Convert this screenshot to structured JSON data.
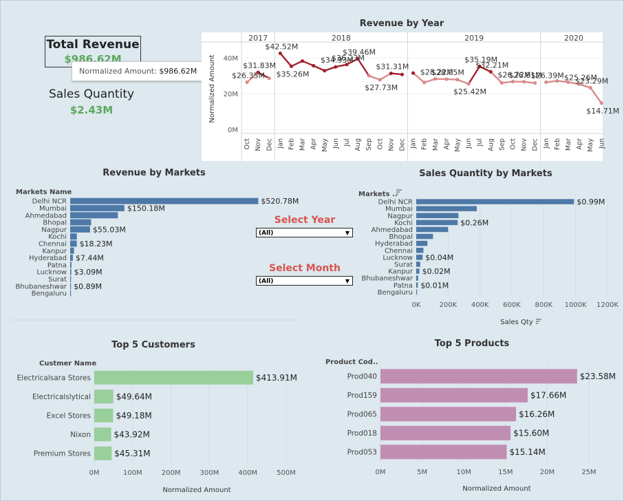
{
  "kpis": {
    "total_revenue_label": "Total Revenue",
    "total_revenue_value": "$986.62M",
    "sales_quantity_label": "Sales Quantity",
    "sales_quantity_value": "$2.43M",
    "tooltip_label": "Normalized Amount:",
    "tooltip_value": "$986.62M"
  },
  "filters": {
    "year_title": "Select Year",
    "year_value": "(All)",
    "month_title": "Select Month",
    "month_value": "(All)"
  },
  "colors": {
    "line_dark": "#a3212d",
    "line_light": "#d88b8b",
    "market_bar": "#4e79a7",
    "customer_bar": "#98cf9b",
    "product_bar": "#c18eb3",
    "kpi_green": "#5ba85b",
    "select_title": "#d9534f"
  },
  "chart_data": [
    {
      "id": "revenue_by_year",
      "type": "line",
      "title": "Revenue by Year",
      "ylabel": "Normalized Amount",
      "ylim": [
        0,
        45
      ],
      "y_ticks": [
        "0M",
        "20M",
        "40M"
      ],
      "y_tick_values": [
        0,
        20,
        40
      ],
      "years": [
        {
          "label": "2017",
          "months": [
            "Oct",
            "Nov",
            "Dec"
          ],
          "values": [
            26.35,
            31.83,
            28.6
          ]
        },
        {
          "label": "2018",
          "months": [
            "Jan",
            "Feb",
            "Mar",
            "Apr",
            "May",
            "Jun",
            "Jul",
            "Aug",
            "Sep",
            "Oct",
            "Nov",
            "Dec"
          ],
          "values": [
            42.52,
            35.26,
            38.2,
            35.6,
            32.8,
            34.93,
            36.23,
            39.46,
            30.0,
            27.73,
            31.31,
            30.7
          ]
        },
        {
          "label": "2019",
          "months": [
            "Jan",
            "Feb",
            "Mar",
            "Apr",
            "May",
            "Jun",
            "Jul",
            "Aug",
            "Sep",
            "Oct",
            "Nov",
            "Dec"
          ],
          "values": [
            31.5,
            26.2,
            28.22,
            28.05,
            27.8,
            25.42,
            35.19,
            32.21,
            26.0,
            26.72,
            26.61,
            25.9
          ]
        },
        {
          "label": "2020",
          "months": [
            "Jan",
            "Feb",
            "Mar",
            "Apr",
            "May",
            "Jun"
          ],
          "values": [
            26.39,
            27.1,
            26.4,
            25.26,
            23.29,
            14.71
          ]
        }
      ],
      "data_labels": [
        {
          "year": 0,
          "month": 0,
          "text": "$26.35M"
        },
        {
          "year": 0,
          "month": 1,
          "text": "$31.83M"
        },
        {
          "year": 1,
          "month": 0,
          "text": "$42.52M"
        },
        {
          "year": 1,
          "month": 1,
          "text": "$35.26M"
        },
        {
          "year": 1,
          "month": 5,
          "text": "$34.93M"
        },
        {
          "year": 1,
          "month": 6,
          "text": "$36.23M"
        },
        {
          "year": 1,
          "month": 7,
          "text": "$39.46M"
        },
        {
          "year": 1,
          "month": 9,
          "text": "$27.73M"
        },
        {
          "year": 1,
          "month": 10,
          "text": "$31.31M"
        },
        {
          "year": 2,
          "month": 2,
          "text": "$28.22M"
        },
        {
          "year": 2,
          "month": 3,
          "text": "$28.05M"
        },
        {
          "year": 2,
          "month": 5,
          "text": "$25.42M"
        },
        {
          "year": 2,
          "month": 6,
          "text": "$35.19M"
        },
        {
          "year": 2,
          "month": 7,
          "text": "$32.21M"
        },
        {
          "year": 2,
          "month": 9,
          "text": "$26.72M"
        },
        {
          "year": 2,
          "month": 10,
          "text": "$26.61M"
        },
        {
          "year": 3,
          "month": 0,
          "text": "$26.39M"
        },
        {
          "year": 3,
          "month": 3,
          "text": "$25.26M"
        },
        {
          "year": 3,
          "month": 4,
          "text": "$23.29M"
        },
        {
          "year": 3,
          "month": 5,
          "text": "$14.71M"
        }
      ]
    },
    {
      "id": "revenue_by_markets",
      "type": "bar",
      "title": "Revenue by Markets",
      "category_header": "Markets Name",
      "categories": [
        "Delhi NCR",
        "Mumbai",
        "Ahmedabad",
        "Bhopal",
        "Nagpur",
        "Kochi",
        "Chennai",
        "Kanpur",
        "Hyderabad",
        "Patna",
        "Lucknow",
        "Surat",
        "Bhubaneshwar",
        "Bengaluru"
      ],
      "values": [
        520.78,
        150.18,
        132.0,
        58.0,
        55.03,
        18.5,
        18.23,
        10.5,
        7.44,
        3.5,
        3.09,
        1.5,
        0.89,
        0.1
      ],
      "labels": [
        "$520.78M",
        "$150.18M",
        "",
        "",
        "$55.03M",
        "",
        "$18.23M",
        "",
        "$7.44M",
        "",
        "$3.09M",
        "",
        "$0.89M",
        ""
      ],
      "xlim": [
        0,
        560
      ]
    },
    {
      "id": "sales_quantity_by_markets",
      "type": "bar",
      "title": "Sales Quantity by Markets",
      "category_header": "Markets ..",
      "categories": [
        "Delhi NCR",
        "Mumbai",
        "Nagpur",
        "Kochi",
        "Ahmedabad",
        "Bhopal",
        "Hyderabad",
        "Chennai",
        "Lucknow",
        "Surat",
        "Kanpur",
        "Bhubaneshwar",
        "Patna",
        "Bengaluru"
      ],
      "values": [
        990000,
        380000,
        265000,
        260000,
        200000,
        105000,
        70000,
        45000,
        40000,
        25000,
        20000,
        12000,
        10000,
        2000
      ],
      "labels": [
        "$0.99M",
        "",
        "",
        "$0.26M",
        "",
        "",
        "",
        "",
        "$0.04M",
        "",
        "$0.02M",
        "",
        "$0.01M",
        ""
      ],
      "xlim": [
        0,
        1200000
      ],
      "x_ticks": [
        "0K",
        "200K",
        "400K",
        "600K",
        "800K",
        "1000K",
        "1200K"
      ],
      "x_tick_values": [
        0,
        200000,
        400000,
        600000,
        800000,
        1000000,
        1200000
      ],
      "xlabel": "Sales Qty"
    },
    {
      "id": "top_5_customers",
      "type": "bar",
      "title": "Top 5 Customers",
      "category_header": "Custmer Name",
      "categories": [
        "Electricalsara Stores",
        "Electricalslytical",
        "Excel Stores",
        "Nixon",
        "Premium Stores"
      ],
      "values": [
        413.91,
        49.64,
        49.18,
        43.92,
        45.31
      ],
      "labels": [
        "$413.91M",
        "$49.64M",
        "$49.18M",
        "$43.92M",
        "$45.31M"
      ],
      "xlim": [
        0,
        500
      ],
      "x_ticks": [
        "0M",
        "100M",
        "200M",
        "300M",
        "400M",
        "500M"
      ],
      "x_tick_values": [
        0,
        100,
        200,
        300,
        400,
        500
      ],
      "xlabel": "Normalized Amount"
    },
    {
      "id": "top_5_products",
      "type": "bar",
      "title": "Top 5 Products",
      "category_header": "Product Cod..",
      "categories": [
        "Prod040",
        "Prod159",
        "Prod065",
        "Prod018",
        "Prod053"
      ],
      "values": [
        23.58,
        17.66,
        16.26,
        15.6,
        15.14
      ],
      "labels": [
        "$23.58M",
        "$17.66M",
        "$16.26M",
        "$15.60M",
        "$15.14M"
      ],
      "xlim": [
        0,
        25
      ],
      "x_ticks": [
        "0M",
        "5M",
        "10M",
        "15M",
        "20M",
        "25M"
      ],
      "x_tick_values": [
        0,
        5,
        10,
        15,
        20,
        25
      ],
      "xlabel": "Normalized Amount"
    }
  ]
}
